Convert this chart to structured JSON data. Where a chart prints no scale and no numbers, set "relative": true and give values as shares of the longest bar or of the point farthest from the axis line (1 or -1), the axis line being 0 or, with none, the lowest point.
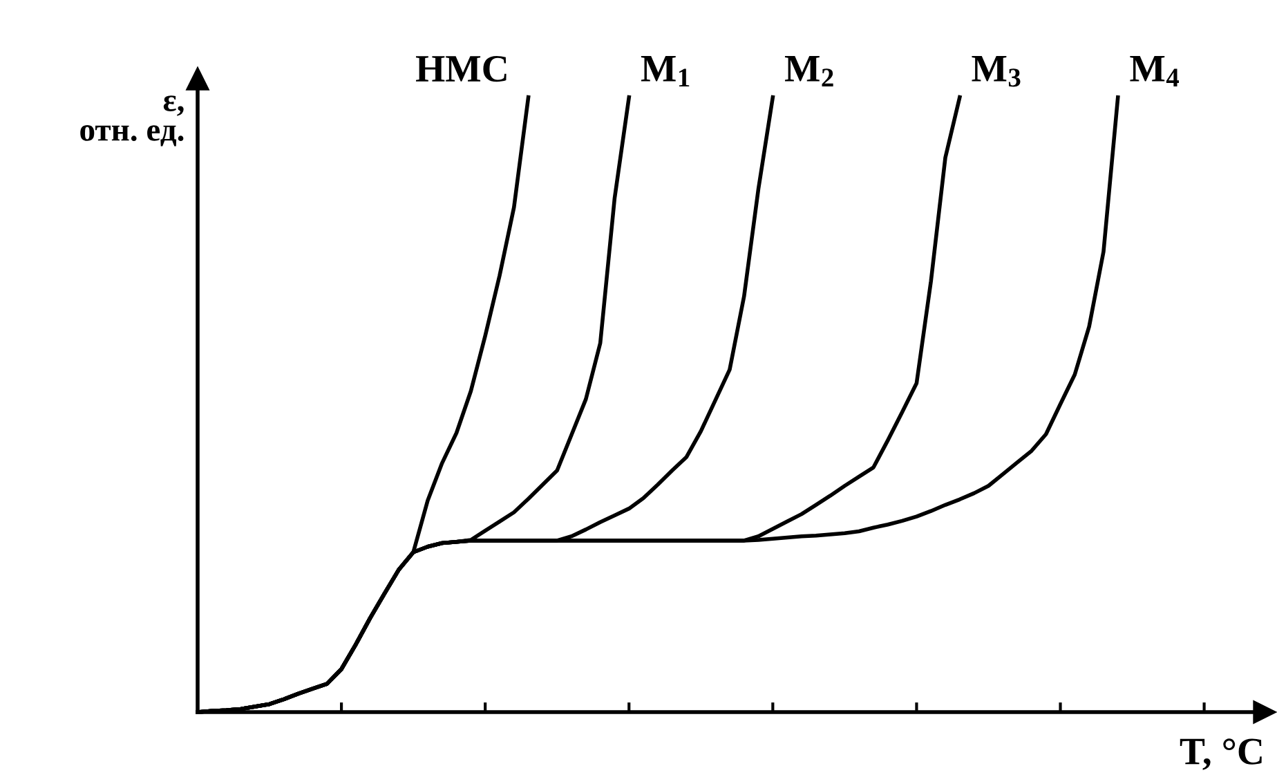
{
  "chart_data": {
    "type": "line",
    "relative": true,
    "xlabel": "T, °C",
    "ylabel": "ε,\nотн. ед.",
    "categories": [
      null,
      null,
      null,
      null,
      null,
      null,
      null,
      null,
      null,
      null,
      null,
      null,
      null,
      null,
      null,
      null,
      null,
      null,
      null,
      null,
      null,
      null,
      null,
      null,
      null,
      null,
      null,
      null,
      null,
      null,
      null,
      null,
      null,
      null,
      null,
      null,
      null,
      null,
      null,
      null,
      null,
      null,
      null,
      null,
      null,
      null,
      null,
      null,
      null,
      null,
      null,
      null,
      null,
      null,
      null,
      null,
      null,
      null,
      null,
      null,
      null,
      null,
      null,
      null,
      null,
      null,
      null,
      null,
      null,
      null,
      null,
      null,
      null,
      null,
      null
    ],
    "marker": "none",
    "line_style": "solid",
    "grid": false,
    "legend": false,
    "series": [
      {
        "name": "НМС",
        "color": "#000000",
        "values": [
          0,
          0.002,
          0.003,
          0.005,
          0.009,
          0.013,
          0.021,
          0.03,
          0.038,
          0.046,
          0.07,
          0.11,
          0.153,
          0.193,
          0.232,
          0.26,
          0.344,
          0.405,
          0.454,
          0.522,
          0.612,
          0.71,
          0.821,
          1.0,
          null,
          null,
          null,
          null,
          null,
          null,
          null,
          null,
          null,
          null,
          null,
          null,
          null,
          null,
          null,
          null,
          null,
          null,
          null,
          null,
          null,
          null,
          null,
          null,
          null,
          null,
          null,
          null,
          null,
          null,
          null,
          null,
          null,
          null,
          null,
          null,
          null,
          null,
          null,
          null,
          null,
          null,
          null,
          null,
          null,
          null,
          null,
          null,
          null,
          null,
          null
        ]
      },
      {
        "name": "М$_{1}$",
        "color": "#000000",
        "values": [
          0,
          0.002,
          0.003,
          0.005,
          0.009,
          0.013,
          0.021,
          0.03,
          0.038,
          0.046,
          0.07,
          0.11,
          0.153,
          0.193,
          0.232,
          0.26,
          0.269,
          0.275,
          0.277,
          0.28,
          0.295,
          0.31,
          0.325,
          0.347,
          0.37,
          0.393,
          0.451,
          0.509,
          0.6,
          0.836,
          1.0,
          null,
          null,
          null,
          null,
          null,
          null,
          null,
          null,
          null,
          null,
          null,
          null,
          null,
          null,
          null,
          null,
          null,
          null,
          null,
          null,
          null,
          null,
          null,
          null,
          null,
          null,
          null,
          null,
          null,
          null,
          null,
          null,
          null,
          null,
          null,
          null,
          null,
          null,
          null,
          null,
          null,
          null,
          null,
          null
        ]
      },
      {
        "name": "М$_{2}$",
        "color": "#000000",
        "values": [
          0,
          0.002,
          0.003,
          0.005,
          0.009,
          0.013,
          0.021,
          0.03,
          0.038,
          0.046,
          0.07,
          0.11,
          0.153,
          0.193,
          0.232,
          0.26,
          0.269,
          0.275,
          0.277,
          0.279,
          0.279,
          0.279,
          0.279,
          0.279,
          0.279,
          0.279,
          0.286,
          0.297,
          0.309,
          0.32,
          0.331,
          0.348,
          0.37,
          0.393,
          0.415,
          0.457,
          0.507,
          0.557,
          0.676,
          0.851,
          1.0,
          null,
          null,
          null,
          null,
          null,
          null,
          null,
          null,
          null,
          null,
          null,
          null,
          null,
          null,
          null,
          null,
          null,
          null,
          null,
          null,
          null,
          null,
          null,
          null,
          null,
          null,
          null,
          null,
          null,
          null,
          null,
          null,
          null,
          null
        ]
      },
      {
        "name": "М$_{3}$",
        "color": "#000000",
        "values": [
          0,
          0.002,
          0.003,
          0.005,
          0.009,
          0.013,
          0.021,
          0.03,
          0.038,
          0.046,
          0.07,
          0.11,
          0.153,
          0.193,
          0.232,
          0.26,
          0.269,
          0.275,
          0.277,
          0.279,
          0.279,
          0.279,
          0.279,
          0.279,
          0.279,
          0.279,
          0.279,
          0.279,
          0.279,
          0.279,
          0.279,
          0.279,
          0.279,
          0.279,
          0.279,
          0.279,
          0.279,
          0.279,
          0.279,
          0.286,
          0.298,
          0.31,
          0.322,
          0.337,
          0.352,
          0.368,
          0.383,
          0.398,
          0.442,
          0.488,
          0.535,
          0.701,
          0.902,
          1.0,
          null,
          null,
          null,
          null,
          null,
          null,
          null,
          null,
          null,
          null,
          null,
          null,
          null,
          null,
          null,
          null,
          null,
          null,
          null,
          null,
          null
        ]
      },
      {
        "name": "М$_{4}$",
        "color": "#000000",
        "values": [
          0,
          0.002,
          0.003,
          0.005,
          0.009,
          0.013,
          0.021,
          0.03,
          0.038,
          0.046,
          0.07,
          0.11,
          0.153,
          0.193,
          0.232,
          0.26,
          0.269,
          0.275,
          0.277,
          0.279,
          0.279,
          0.279,
          0.279,
          0.279,
          0.279,
          0.279,
          0.279,
          0.279,
          0.279,
          0.279,
          0.279,
          0.279,
          0.279,
          0.279,
          0.279,
          0.279,
          0.279,
          0.279,
          0.279,
          0.28,
          0.282,
          0.284,
          0.286,
          0.287,
          0.289,
          0.291,
          0.294,
          0.3,
          0.305,
          0.311,
          0.318,
          0.327,
          0.337,
          0.346,
          0.356,
          0.368,
          0.387,
          0.406,
          0.425,
          0.452,
          0.501,
          0.549,
          0.627,
          0.749,
          1.0,
          null,
          null,
          null,
          null,
          null,
          null,
          null,
          null,
          null,
          null
        ]
      }
    ]
  }
}
